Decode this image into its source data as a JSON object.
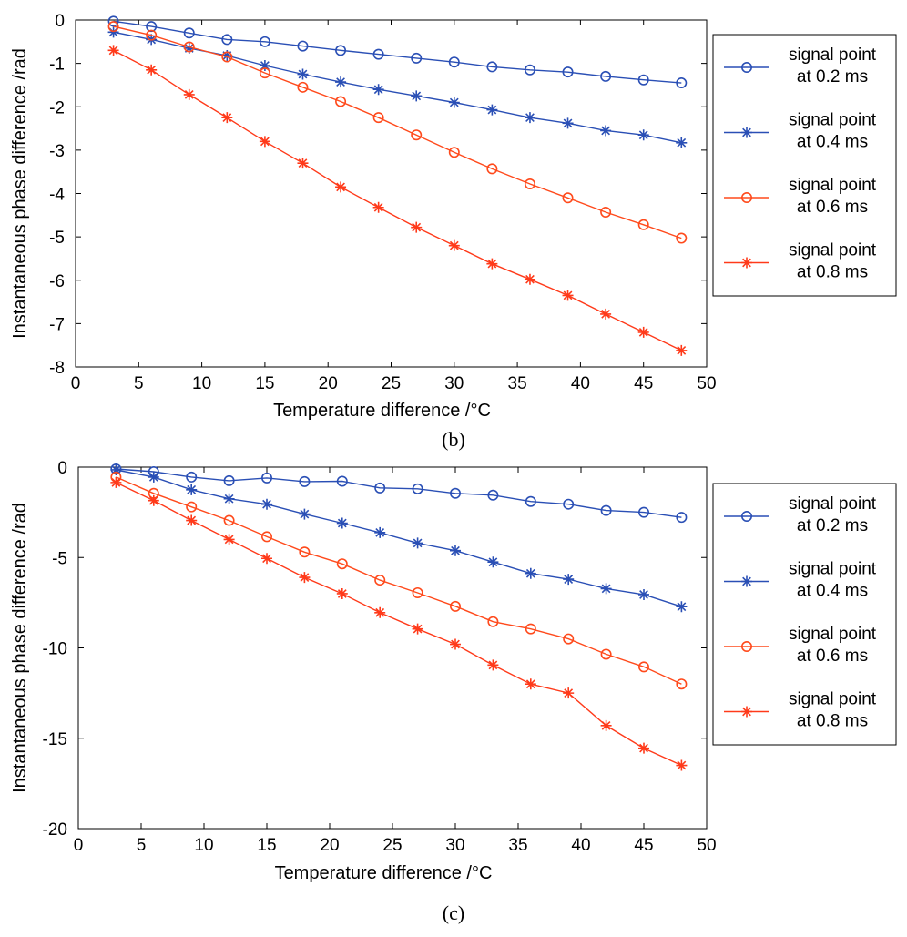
{
  "chart_data": [
    {
      "type": "line",
      "caption": "(b)",
      "xlabel": "Temperature difference /°C",
      "ylabel": "Instantaneous phase difference /rad",
      "xlim": [
        0,
        50
      ],
      "ylim": [
        -8,
        0
      ],
      "xticks": [
        0,
        5,
        10,
        15,
        20,
        25,
        30,
        35,
        40,
        45,
        50
      ],
      "yticks": [
        0,
        -1,
        -2,
        -3,
        -4,
        -5,
        -6,
        -7,
        -8
      ],
      "legend_position": "right",
      "x": [
        3,
        6,
        9,
        12,
        15,
        18,
        21,
        24,
        27,
        30,
        33,
        36,
        39,
        42,
        45,
        48
      ],
      "series": [
        {
          "name": "signal point at 0.2 ms",
          "label_lines": [
            "signal point",
            "at 0.2 ms"
          ],
          "color": "#2a4fb5",
          "marker": "circle",
          "values": [
            -0.03,
            -0.15,
            -0.3,
            -0.45,
            -0.5,
            -0.6,
            -0.7,
            -0.79,
            -0.88,
            -0.97,
            -1.08,
            -1.15,
            -1.2,
            -1.3,
            -1.38,
            -1.45
          ]
        },
        {
          "name": "signal point at 0.4 ms",
          "label_lines": [
            "signal point",
            "at 0.4 ms"
          ],
          "color": "#2a4fb5",
          "marker": "star",
          "values": [
            -0.28,
            -0.45,
            -0.65,
            -0.82,
            -1.05,
            -1.25,
            -1.43,
            -1.6,
            -1.75,
            -1.9,
            -2.07,
            -2.25,
            -2.38,
            -2.55,
            -2.65,
            -2.83
          ]
        },
        {
          "name": "signal point at 0.6 ms",
          "label_lines": [
            "signal point",
            "at 0.6 ms"
          ],
          "color": "#ff4a1c",
          "marker": "circle",
          "values": [
            -0.15,
            -0.35,
            -0.62,
            -0.85,
            -1.22,
            -1.55,
            -1.88,
            -2.25,
            -2.65,
            -3.05,
            -3.43,
            -3.78,
            -4.1,
            -4.43,
            -4.72,
            -5.03
          ]
        },
        {
          "name": "signal point at 0.8 ms",
          "label_lines": [
            "signal point",
            "at 0.8 ms"
          ],
          "color": "#ff3a1a",
          "marker": "star",
          "values": [
            -0.7,
            -1.15,
            -1.72,
            -2.25,
            -2.8,
            -3.3,
            -3.85,
            -4.32,
            -4.78,
            -5.2,
            -5.62,
            -5.98,
            -6.35,
            -6.78,
            -7.2,
            -7.62
          ]
        }
      ]
    },
    {
      "type": "line",
      "caption": "(c)",
      "xlabel": "Temperature difference /°C",
      "ylabel": "Instantaneous phase difference /rad",
      "xlim": [
        0,
        50
      ],
      "ylim": [
        -20,
        0
      ],
      "xticks": [
        0,
        5,
        10,
        15,
        20,
        25,
        30,
        35,
        40,
        45,
        50
      ],
      "yticks": [
        0,
        -5,
        -10,
        -15,
        -20
      ],
      "legend_position": "right",
      "x": [
        3,
        6,
        9,
        12,
        15,
        18,
        21,
        24,
        27,
        30,
        33,
        36,
        39,
        42,
        45,
        48
      ],
      "series": [
        {
          "name": "signal point at 0.2 ms",
          "label_lines": [
            "signal point",
            "at 0.2 ms"
          ],
          "color": "#2a4fb5",
          "marker": "circle",
          "values": [
            -0.1,
            -0.25,
            -0.55,
            -0.75,
            -0.6,
            -0.8,
            -0.78,
            -1.15,
            -1.2,
            -1.45,
            -1.55,
            -1.9,
            -2.05,
            -2.4,
            -2.5,
            -2.78
          ]
        },
        {
          "name": "signal point at 0.4 ms",
          "label_lines": [
            "signal point",
            "at 0.4 ms"
          ],
          "color": "#2a4fb5",
          "marker": "star",
          "values": [
            -0.15,
            -0.55,
            -1.25,
            -1.75,
            -2.05,
            -2.6,
            -3.1,
            -3.62,
            -4.2,
            -4.62,
            -5.25,
            -5.88,
            -6.2,
            -6.72,
            -7.05,
            -7.72
          ]
        },
        {
          "name": "signal point at 0.6 ms",
          "label_lines": [
            "signal point",
            "at 0.6 ms"
          ],
          "color": "#ff4a1c",
          "marker": "circle",
          "values": [
            -0.55,
            -1.45,
            -2.2,
            -2.95,
            -3.85,
            -4.7,
            -5.35,
            -6.25,
            -6.95,
            -7.7,
            -8.55,
            -8.95,
            -9.5,
            -10.35,
            -11.05,
            -12.0
          ]
        },
        {
          "name": "signal point at 0.8 ms",
          "label_lines": [
            "signal point",
            "at 0.8 ms"
          ],
          "color": "#ff3a1a",
          "marker": "star",
          "values": [
            -0.85,
            -1.85,
            -2.95,
            -4.0,
            -5.05,
            -6.1,
            -7.0,
            -8.05,
            -8.95,
            -9.8,
            -10.95,
            -12.0,
            -12.5,
            -14.3,
            -15.55,
            -16.5
          ]
        }
      ]
    }
  ]
}
